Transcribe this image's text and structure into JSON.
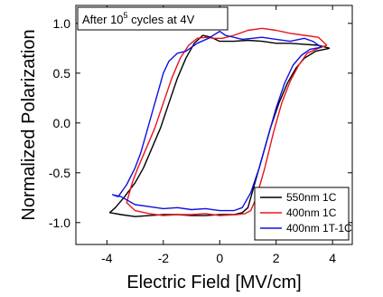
{
  "chart_data": {
    "type": "line",
    "xlabel": "Electric Field [MV/cm]",
    "ylabel": "Normalized Polarization",
    "xlim": [
      -5.1,
      4.7
    ],
    "ylim": [
      -1.22,
      1.18
    ],
    "xticks": [
      -4,
      -2,
      0,
      2,
      4
    ],
    "yticks": [
      -1.0,
      -0.5,
      0.0,
      0.5,
      1.0
    ],
    "xtick_labels": [
      "-4",
      "-2",
      "0",
      "2",
      "4"
    ],
    "ytick_labels": [
      "-1.0",
      "-0.5",
      "0.0",
      "0.5",
      "1.0"
    ],
    "annotation": {
      "prefix": "After 10",
      "superscript": "5",
      "suffix": " cycles at 4V",
      "position": "top-left"
    },
    "legend": {
      "position": "bottom-right"
    },
    "grid": false,
    "series": [
      {
        "name": "550nm 1C",
        "color": "#000000",
        "x": [
          3.9,
          3.4,
          3.0,
          2.7,
          2.4,
          2.1,
          1.8,
          1.5,
          1.2,
          1.0,
          0.8,
          0.5,
          0.0,
          -0.5,
          -1.0,
          -1.5,
          -2.0,
          -2.5,
          -3.0,
          -3.5,
          -3.9,
          -3.7,
          -3.4,
          -3.0,
          -2.7,
          -2.4,
          -2.1,
          -1.8,
          -1.5,
          -1.2,
          -0.9,
          -0.6,
          -0.3,
          0.0,
          0.5,
          1.0,
          1.5,
          2.0,
          2.5,
          3.0,
          3.5,
          3.9
        ],
        "y": [
          0.75,
          0.72,
          0.65,
          0.55,
          0.4,
          0.2,
          -0.05,
          -0.35,
          -0.65,
          -0.85,
          -0.9,
          -0.92,
          -0.92,
          -0.93,
          -0.93,
          -0.92,
          -0.92,
          -0.93,
          -0.94,
          -0.92,
          -0.9,
          -0.85,
          -0.75,
          -0.6,
          -0.45,
          -0.25,
          -0.05,
          0.2,
          0.45,
          0.65,
          0.8,
          0.88,
          0.86,
          0.82,
          0.82,
          0.83,
          0.82,
          0.8,
          0.8,
          0.79,
          0.78,
          0.75
        ]
      },
      {
        "name": "400nm 1C",
        "color": "#e8141c",
        "x": [
          3.8,
          3.5,
          3.1,
          2.8,
          2.5,
          2.2,
          1.9,
          1.6,
          1.3,
          1.1,
          0.9,
          0.6,
          0.0,
          -0.5,
          -1.0,
          -1.5,
          -2.0,
          -2.5,
          -3.0,
          -3.3,
          -3.1,
          -2.9,
          -2.6,
          -2.3,
          -2.0,
          -1.7,
          -1.4,
          -1.1,
          -0.8,
          -0.5,
          -0.2,
          0.1,
          0.5,
          1.0,
          1.5,
          2.0,
          2.5,
          3.0,
          3.5,
          3.8
        ],
        "y": [
          0.78,
          0.75,
          0.7,
          0.58,
          0.42,
          0.2,
          -0.1,
          -0.45,
          -0.75,
          -0.88,
          -0.91,
          -0.92,
          -0.93,
          -0.91,
          -0.92,
          -0.92,
          -0.93,
          -0.91,
          -0.88,
          -0.8,
          -0.6,
          -0.45,
          -0.25,
          -0.05,
          0.2,
          0.45,
          0.65,
          0.78,
          0.85,
          0.86,
          0.85,
          0.85,
          0.88,
          0.93,
          0.95,
          0.93,
          0.9,
          0.88,
          0.86,
          0.78
        ]
      },
      {
        "name": "400nm 1T-1C",
        "color": "#1010e0",
        "x": [
          3.6,
          3.2,
          2.9,
          2.6,
          2.3,
          2.0,
          1.7,
          1.4,
          1.1,
          0.8,
          0.5,
          0.0,
          -0.5,
          -1.0,
          -1.5,
          -2.0,
          -2.5,
          -3.0,
          -3.5,
          -3.8,
          -3.6,
          -3.3,
          -3.0,
          -2.8,
          -2.6,
          -2.4,
          -2.2,
          -2.0,
          -1.8,
          -1.5,
          -1.2,
          -0.8,
          -0.4,
          0.0,
          0.2,
          0.8,
          1.5,
          2.0,
          2.5,
          3.0,
          3.3,
          3.6
        ],
        "y": [
          0.76,
          0.74,
          0.68,
          0.58,
          0.4,
          0.15,
          -0.15,
          -0.45,
          -0.7,
          -0.85,
          -0.88,
          -0.88,
          -0.86,
          -0.87,
          -0.85,
          -0.86,
          -0.84,
          -0.82,
          -0.74,
          -0.72,
          -0.74,
          -0.62,
          -0.45,
          -0.3,
          -0.1,
          0.1,
          0.3,
          0.5,
          0.62,
          0.7,
          0.72,
          0.8,
          0.85,
          0.92,
          0.88,
          0.84,
          0.86,
          0.84,
          0.82,
          0.85,
          0.82,
          0.76
        ]
      }
    ]
  }
}
